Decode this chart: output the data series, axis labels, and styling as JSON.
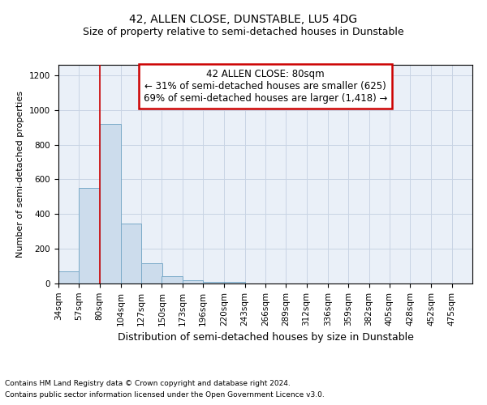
{
  "title": "42, ALLEN CLOSE, DUNSTABLE, LU5 4DG",
  "subtitle": "Size of property relative to semi-detached houses in Dunstable",
  "xlabel": "Distribution of semi-detached houses by size in Dunstable",
  "ylabel": "Number of semi-detached properties",
  "footnote1": "Contains HM Land Registry data © Crown copyright and database right 2024.",
  "footnote2": "Contains public sector information licensed under the Open Government Licence v3.0.",
  "annotation_title": "42 ALLEN CLOSE: 80sqm",
  "annotation_line1": "← 31% of semi-detached houses are smaller (625)",
  "annotation_line2": "69% of semi-detached houses are larger (1,418) →",
  "subject_value": 80,
  "bar_edges": [
    34,
    57,
    80,
    104,
    127,
    150,
    173,
    196,
    220,
    243,
    266,
    289,
    312,
    336,
    359,
    382,
    405,
    428,
    452,
    475,
    498
  ],
  "bar_heights": [
    70,
    550,
    920,
    345,
    115,
    40,
    20,
    10,
    10,
    0,
    0,
    0,
    0,
    0,
    0,
    0,
    0,
    0,
    0,
    0
  ],
  "bar_color": "#ccdcec",
  "bar_edge_color": "#7aaac8",
  "red_line_color": "#cc0000",
  "annotation_box_color": "#cc0000",
  "grid_color": "#c8d4e4",
  "bg_color": "#eaf0f8",
  "title_fontsize": 10,
  "subtitle_fontsize": 9,
  "ylabel_fontsize": 8,
  "xlabel_fontsize": 9,
  "tick_fontsize": 7.5,
  "footnote_fontsize": 6.5,
  "annotation_fontsize": 8.5,
  "ylim": [
    0,
    1260
  ],
  "yticks": [
    0,
    200,
    400,
    600,
    800,
    1000,
    1200
  ]
}
